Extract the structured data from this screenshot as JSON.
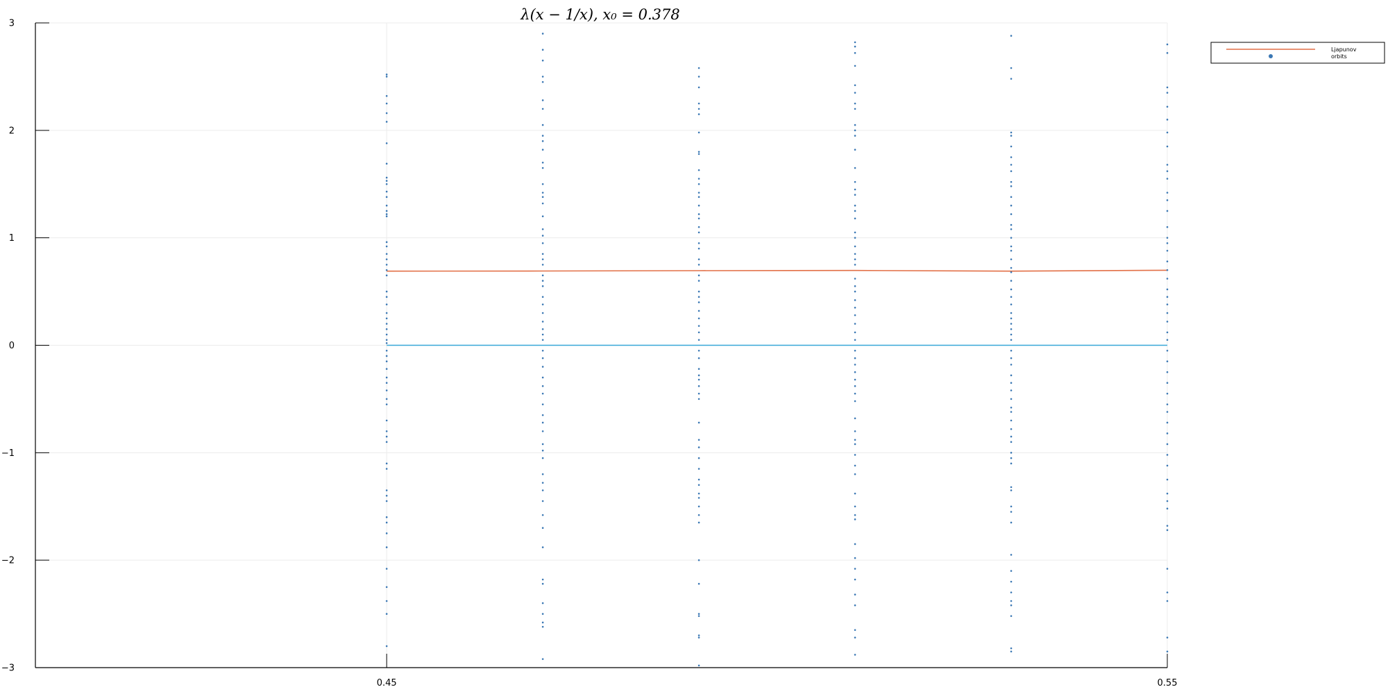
{
  "chart_data": {
    "type": "scatter",
    "title": "λ(x − 1/x),  x₀ = 0.378",
    "xlim": [
      0.405,
      0.55
    ],
    "ylim": [
      -3,
      3
    ],
    "x_ticks": [
      {
        "value": 0.45,
        "label": "0.45"
      },
      {
        "value": 0.55,
        "label": "0.55"
      }
    ],
    "y_ticks": [
      {
        "value": 3,
        "label": "3"
      },
      {
        "value": 2,
        "label": "2"
      },
      {
        "value": 1,
        "label": "1"
      },
      {
        "value": 0,
        "label": "0"
      },
      {
        "value": -1,
        "label": "−1"
      },
      {
        "value": -2,
        "label": "−2"
      },
      {
        "value": -3,
        "label": "−3"
      }
    ],
    "grid": true,
    "legend_position": "top-right",
    "series": [
      {
        "name": "Ljapunov",
        "kind": "line",
        "color": "#e26f46",
        "x": [
          0.45,
          0.47,
          0.49,
          0.51,
          0.53,
          0.55
        ],
        "y": [
          0.69,
          0.691,
          0.694,
          0.696,
          0.69,
          0.698
        ]
      },
      {
        "name": "orbits",
        "kind": "scatter",
        "color": "#3b78b4",
        "points": [
          {
            "x": 0.45,
            "y": [
              2.52,
              2.5,
              2.32,
              2.25,
              2.16,
              2.08,
              1.88,
              1.69,
              1.56,
              1.53,
              1.5,
              1.43,
              1.38,
              1.3,
              1.25,
              1.22,
              1.2,
              0.96,
              0.92,
              0.85,
              0.8,
              0.75,
              0.7,
              0.65,
              0.5,
              0.45,
              0.38,
              0.3,
              0.25,
              0.2,
              0.15,
              0.1,
              0.05,
              0.02,
              -0.05,
              -0.1,
              -0.15,
              -0.22,
              -0.3,
              -0.35,
              -0.42,
              -0.5,
              -0.55,
              -0.7,
              -0.8,
              -0.85,
              -0.9,
              -1.1,
              -1.15,
              -1.35,
              -1.4,
              -1.45,
              -1.6,
              -1.65,
              -1.75,
              -1.88,
              -2.08,
              -2.25,
              -2.38,
              -2.5,
              -2.8
            ]
          },
          {
            "x": 0.47,
            "y": [
              2.9,
              2.75,
              2.65,
              2.5,
              2.45,
              2.28,
              2.2,
              2.05,
              1.95,
              1.9,
              1.82,
              1.7,
              1.65,
              1.5,
              1.42,
              1.38,
              1.32,
              1.2,
              1.08,
              1.02,
              0.95,
              0.85,
              0.8,
              0.75,
              0.65,
              0.6,
              0.55,
              0.45,
              0.38,
              0.3,
              0.22,
              0.15,
              0.1,
              0.05,
              -0.05,
              -0.12,
              -0.2,
              -0.3,
              -0.38,
              -0.45,
              -0.55,
              -0.65,
              -0.72,
              -0.8,
              -0.92,
              -0.98,
              -1.05,
              -1.2,
              -1.28,
              -1.35,
              -1.45,
              -1.58,
              -1.7,
              -1.88,
              -2.18,
              -2.22,
              -2.4,
              -2.5,
              -2.58,
              -2.62,
              -2.92
            ]
          },
          {
            "x": 0.49,
            "y": [
              2.58,
              2.5,
              2.4,
              2.25,
              2.2,
              2.15,
              1.98,
              1.8,
              1.78,
              1.63,
              1.55,
              1.5,
              1.42,
              1.38,
              1.3,
              1.22,
              1.18,
              1.1,
              1.05,
              0.95,
              0.9,
              0.8,
              0.75,
              0.65,
              0.6,
              0.5,
              0.45,
              0.4,
              0.32,
              0.25,
              0.18,
              0.12,
              0.05,
              -0.05,
              -0.12,
              -0.22,
              -0.28,
              -0.32,
              -0.38,
              -0.45,
              -0.5,
              -0.72,
              -0.88,
              -0.95,
              -1.05,
              -1.15,
              -1.25,
              -1.3,
              -1.38,
              -1.42,
              -1.5,
              -1.58,
              -1.65,
              -2.0,
              -2.22,
              -2.5,
              -2.52,
              -2.7,
              -2.72,
              -2.98
            ]
          },
          {
            "x": 0.51,
            "y": [
              2.82,
              2.78,
              2.72,
              2.6,
              2.42,
              2.35,
              2.25,
              2.2,
              2.05,
              2.0,
              1.95,
              1.82,
              1.65,
              1.52,
              1.45,
              1.4,
              1.3,
              1.25,
              1.18,
              1.05,
              1.0,
              0.92,
              0.85,
              0.8,
              0.75,
              0.62,
              0.55,
              0.5,
              0.42,
              0.35,
              0.28,
              0.2,
              0.12,
              0.05,
              -0.05,
              -0.12,
              -0.18,
              -0.25,
              -0.32,
              -0.38,
              -0.45,
              -0.52,
              -0.68,
              -0.8,
              -0.88,
              -0.92,
              -1.02,
              -1.12,
              -1.2,
              -1.38,
              -1.5,
              -1.58,
              -1.62,
              -1.85,
              -1.98,
              -2.08,
              -2.18,
              -2.32,
              -2.42,
              -2.65,
              -2.72,
              -2.88
            ]
          },
          {
            "x": 0.53,
            "y": [
              2.88,
              2.58,
              2.48,
              1.98,
              1.95,
              1.85,
              1.75,
              1.68,
              1.62,
              1.52,
              1.48,
              1.38,
              1.3,
              1.22,
              1.12,
              1.08,
              1.0,
              0.92,
              0.88,
              0.8,
              0.72,
              0.68,
              0.6,
              0.52,
              0.45,
              0.38,
              0.3,
              0.25,
              0.2,
              0.15,
              0.1,
              0.05,
              -0.05,
              -0.12,
              -0.18,
              -0.28,
              -0.35,
              -0.42,
              -0.5,
              -0.58,
              -0.62,
              -0.7,
              -0.78,
              -0.85,
              -0.9,
              -1.0,
              -1.05,
              -1.1,
              -1.32,
              -1.35,
              -1.5,
              -1.55,
              -1.65,
              -1.95,
              -2.1,
              -2.2,
              -2.3,
              -2.38,
              -2.42,
              -2.52,
              -2.82,
              -2.85
            ]
          },
          {
            "x": 0.55,
            "y": [
              2.8,
              2.72,
              2.4,
              2.35,
              2.22,
              2.1,
              1.98,
              1.85,
              1.68,
              1.62,
              1.55,
              1.42,
              1.35,
              1.25,
              1.1,
              1.0,
              0.95,
              0.88,
              0.78,
              0.7,
              0.62,
              0.52,
              0.45,
              0.38,
              0.3,
              0.22,
              0.12,
              0.05,
              -0.05,
              -0.15,
              -0.25,
              -0.35,
              -0.45,
              -0.55,
              -0.62,
              -0.72,
              -0.82,
              -0.92,
              -1.02,
              -1.12,
              -1.25,
              -1.38,
              -1.45,
              -1.52,
              -1.68,
              -1.72,
              -2.08,
              -2.3,
              -2.38,
              -2.72,
              -2.85
            ]
          }
        ]
      },
      {
        "name": "",
        "kind": "line",
        "color": "#37a8d8",
        "x": [
          0.45,
          0.55
        ],
        "y": [
          0,
          0
        ]
      }
    ]
  }
}
